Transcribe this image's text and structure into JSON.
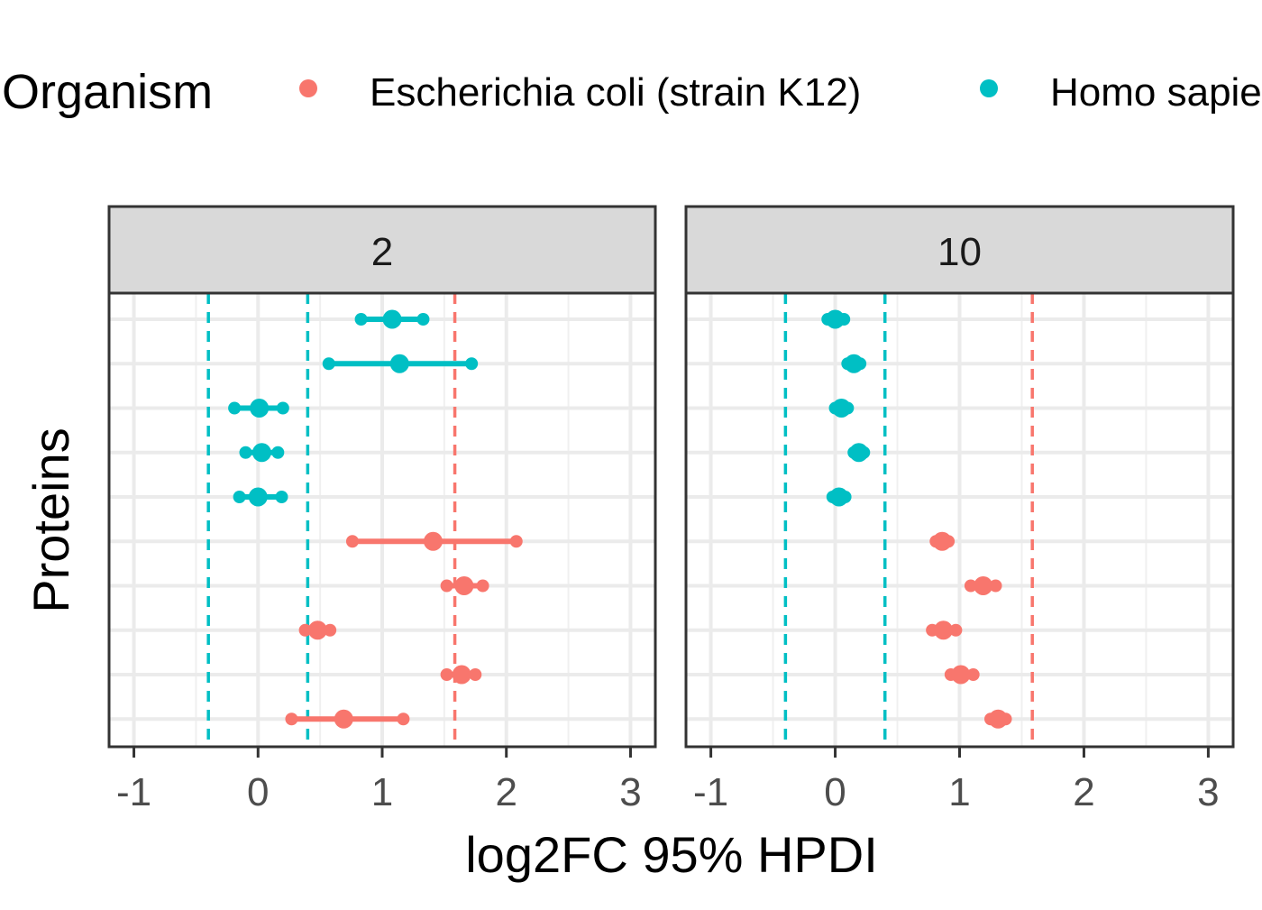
{
  "chart_data": {
    "type": "interval",
    "legend": {
      "title": "Organism",
      "position": "top",
      "entries": [
        {
          "label": "Escherichia coli (strain K12)",
          "color": "#F8766D"
        },
        {
          "label": "Homo sapiens",
          "color": "#00BFC4"
        }
      ]
    },
    "xlabel": "log2FC 95% HPDI",
    "ylabel": "Proteins",
    "xlim": [
      -1.2,
      3.2
    ],
    "x_ticks": [
      "-1",
      "0",
      "1",
      "2",
      "3"
    ],
    "grid": true,
    "reference_lines": [
      {
        "x": -0.4,
        "color": "#00BFC4"
      },
      {
        "x": 0.4,
        "color": "#00BFC4"
      },
      {
        "x": 1.585,
        "color": "#F8766D"
      }
    ],
    "panels": [
      {
        "label": "2",
        "intervals": [
          {
            "organism": "Homo sapiens",
            "low": 0.83,
            "mid": 1.08,
            "high": 1.33
          },
          {
            "organism": "Homo sapiens",
            "low": 0.57,
            "mid": 1.14,
            "high": 1.72
          },
          {
            "organism": "Homo sapiens",
            "low": -0.19,
            "mid": 0.01,
            "high": 0.2
          },
          {
            "organism": "Homo sapiens",
            "low": -0.1,
            "mid": 0.03,
            "high": 0.16
          },
          {
            "organism": "Homo sapiens",
            "low": -0.15,
            "mid": 0.0,
            "high": 0.19
          },
          {
            "organism": "Escherichia coli (strain K12)",
            "low": 0.76,
            "mid": 1.41,
            "high": 2.08
          },
          {
            "organism": "Escherichia coli (strain K12)",
            "low": 1.52,
            "mid": 1.66,
            "high": 1.81
          },
          {
            "organism": "Escherichia coli (strain K12)",
            "low": 0.38,
            "mid": 0.48,
            "high": 0.58
          },
          {
            "organism": "Escherichia coli (strain K12)",
            "low": 1.52,
            "mid": 1.64,
            "high": 1.75
          },
          {
            "organism": "Escherichia coli (strain K12)",
            "low": 0.27,
            "mid": 0.69,
            "high": 1.17
          }
        ]
      },
      {
        "label": "10",
        "intervals": [
          {
            "organism": "Homo sapiens",
            "low": -0.06,
            "mid": 0.0,
            "high": 0.07
          },
          {
            "organism": "Homo sapiens",
            "low": 0.1,
            "mid": 0.15,
            "high": 0.2
          },
          {
            "organism": "Homo sapiens",
            "low": 0.0,
            "mid": 0.05,
            "high": 0.1
          },
          {
            "organism": "Homo sapiens",
            "low": 0.15,
            "mid": 0.19,
            "high": 0.23
          },
          {
            "organism": "Homo sapiens",
            "low": -0.02,
            "mid": 0.03,
            "high": 0.08
          },
          {
            "organism": "Escherichia coli (strain K12)",
            "low": 0.81,
            "mid": 0.86,
            "high": 0.91
          },
          {
            "organism": "Escherichia coli (strain K12)",
            "low": 1.09,
            "mid": 1.19,
            "high": 1.29
          },
          {
            "organism": "Escherichia coli (strain K12)",
            "low": 0.78,
            "mid": 0.87,
            "high": 0.97
          },
          {
            "organism": "Escherichia coli (strain K12)",
            "low": 0.93,
            "mid": 1.01,
            "high": 1.11
          },
          {
            "organism": "Escherichia coli (strain K12)",
            "low": 1.25,
            "mid": 1.31,
            "high": 1.37
          }
        ]
      }
    ]
  }
}
